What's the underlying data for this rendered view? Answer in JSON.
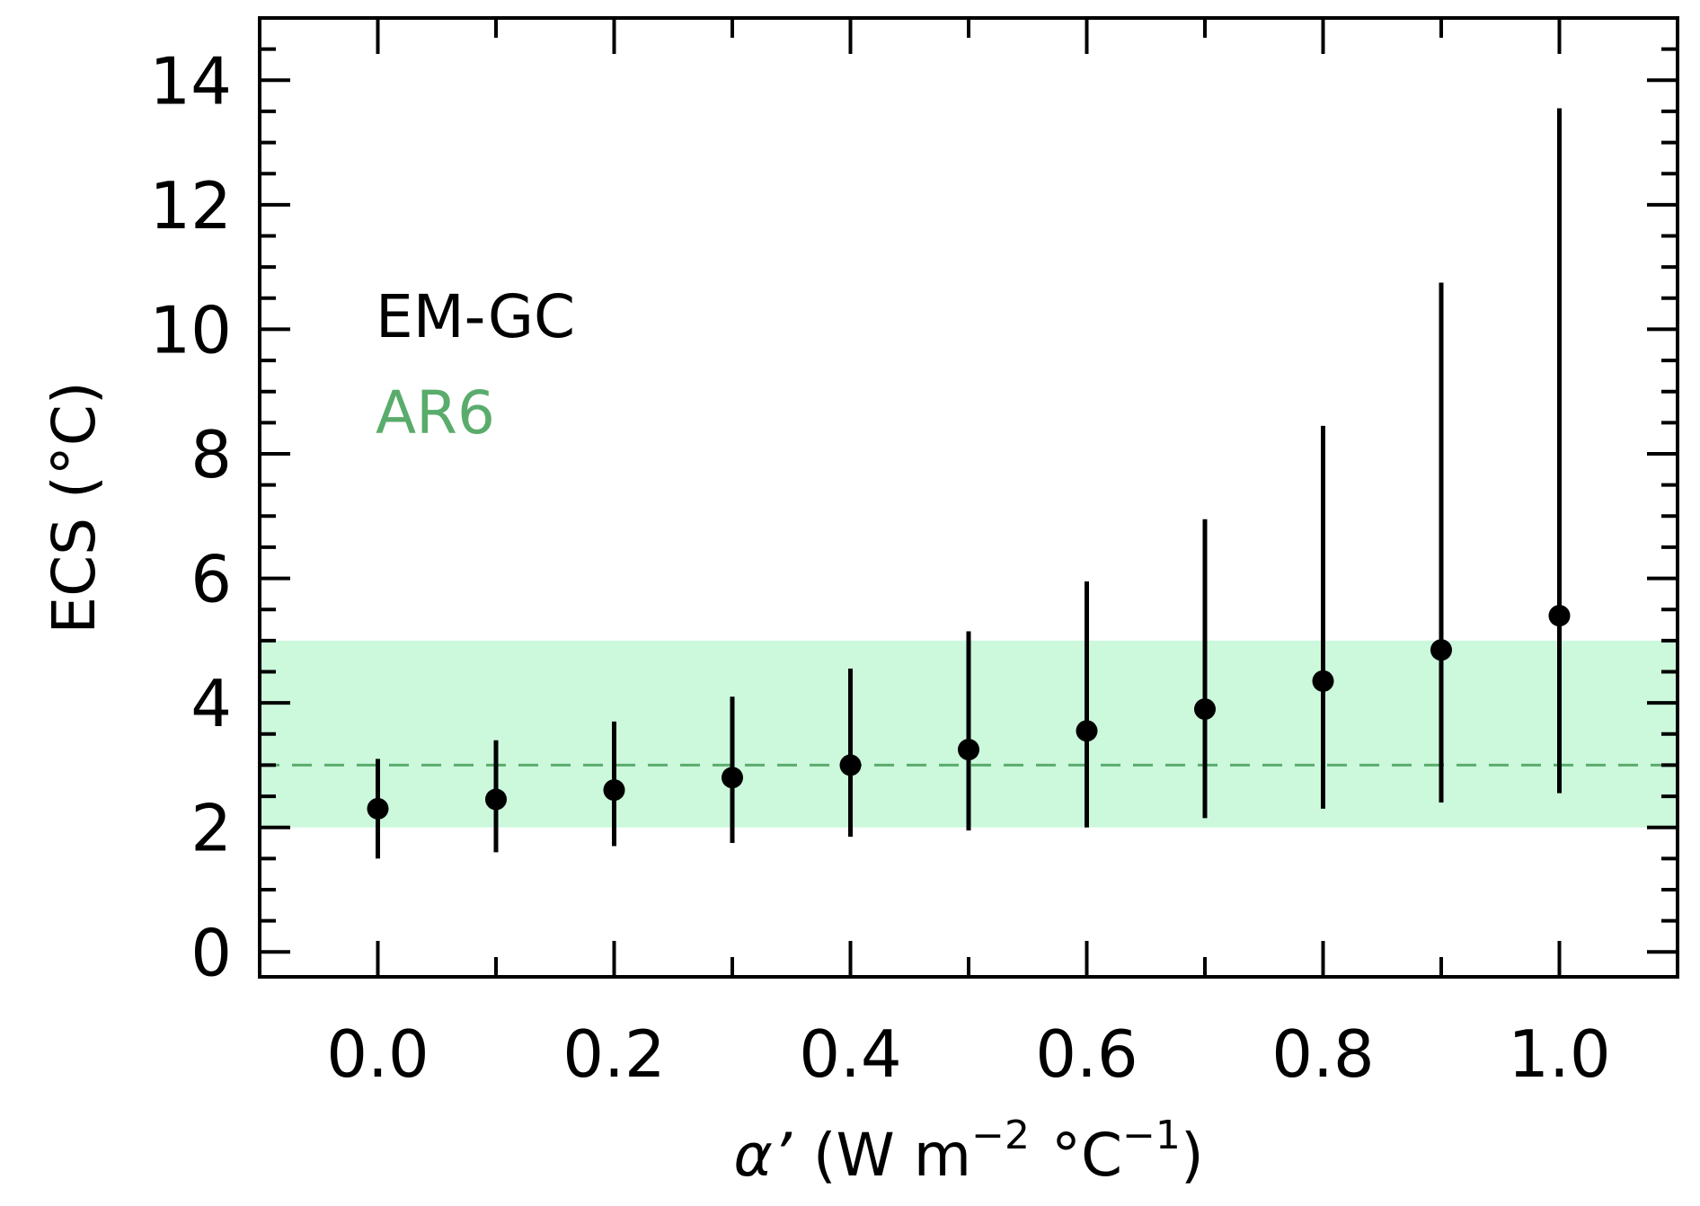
{
  "chart_data": {
    "type": "scatter",
    "title": "",
    "xlabel": {
      "symbol": "α’",
      "text": "(W m",
      "exp1": "−2",
      "mid": "°C",
      "exp2": "−1",
      "close": ")"
    },
    "ylabel": "ECS (°C)",
    "xlim": [
      -0.1,
      1.1
    ],
    "ylim": [
      -0.4,
      15
    ],
    "x_ticks": [
      0.0,
      0.2,
      0.4,
      0.6,
      0.8,
      1.0
    ],
    "x_tick_labels": [
      "0.0",
      "0.2",
      "0.4",
      "0.6",
      "0.8",
      "1.0"
    ],
    "y_ticks": [
      0,
      2,
      4,
      6,
      8,
      10,
      12,
      14
    ],
    "y_tick_labels": [
      "0",
      "2",
      "4",
      "6",
      "8",
      "10",
      "12",
      "14"
    ],
    "grid": false,
    "legend": [
      {
        "name": "EM-GC",
        "color": "#000000"
      },
      {
        "name": "AR6",
        "color": "#5aac6c"
      }
    ],
    "series": [
      {
        "name": "EM-GC",
        "color": "#000000",
        "points": [
          {
            "x": 0.0,
            "y": 2.3,
            "low": 1.5,
            "high": 3.1
          },
          {
            "x": 0.1,
            "y": 2.45,
            "low": 1.6,
            "high": 3.4
          },
          {
            "x": 0.2,
            "y": 2.6,
            "low": 1.7,
            "high": 3.7
          },
          {
            "x": 0.3,
            "y": 2.8,
            "low": 1.75,
            "high": 4.1
          },
          {
            "x": 0.4,
            "y": 3.0,
            "low": 1.85,
            "high": 4.55
          },
          {
            "x": 0.5,
            "y": 3.25,
            "low": 1.95,
            "high": 5.15
          },
          {
            "x": 0.6,
            "y": 3.55,
            "low": 2.0,
            "high": 5.95
          },
          {
            "x": 0.7,
            "y": 3.9,
            "low": 2.15,
            "high": 6.95
          },
          {
            "x": 0.8,
            "y": 4.35,
            "low": 2.3,
            "high": 8.45
          },
          {
            "x": 0.9,
            "y": 4.85,
            "low": 2.4,
            "high": 10.75
          },
          {
            "x": 1.0,
            "y": 5.4,
            "low": 2.55,
            "high": 13.55
          }
        ]
      }
    ],
    "band": {
      "name": "AR6",
      "low": 2.0,
      "high": 5.0,
      "best": 3.0,
      "fill": "#ccf8dc",
      "line_color": "#5aac6c"
    }
  }
}
